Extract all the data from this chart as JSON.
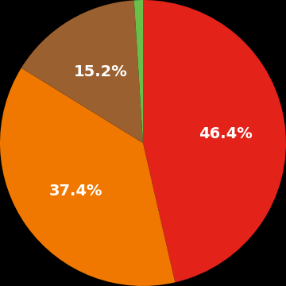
{
  "slices": [
    46.4,
    37.4,
    15.2,
    1.0
  ],
  "colors": [
    "#e32219",
    "#f07800",
    "#9b6030",
    "#6abf4b"
  ],
  "labels": [
    "46.4%",
    "37.4%",
    "15.2%",
    ""
  ],
  "background_color": "#000000",
  "text_color": "#ffffff",
  "label_fontsize": 14,
  "startangle": 90
}
